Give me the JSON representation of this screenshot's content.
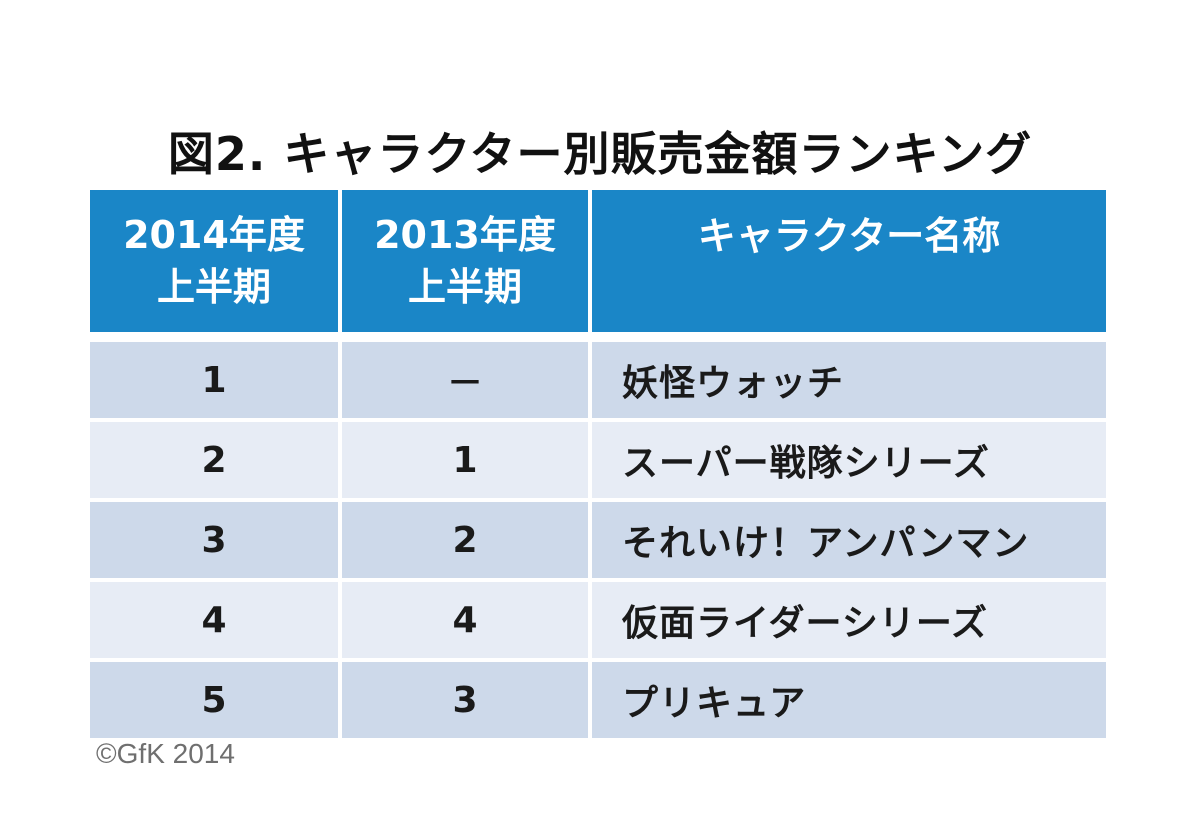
{
  "title": "図2. キャラクター別販売金額ランキング",
  "copyright": "©GfK 2014",
  "colors": {
    "header_bg": "#1a86c7",
    "row_dark": "#cdd9ea",
    "row_light": "#e7ecf5"
  },
  "chart_data": {
    "type": "table",
    "title": "図2. キャラクター別販売金額ランキング",
    "columns": [
      {
        "line1": "2014年度",
        "line2": "上半期"
      },
      {
        "line1": "2013年度",
        "line2": "上半期"
      },
      {
        "line1": "キャラクター名称",
        "line2": ""
      }
    ],
    "rows": [
      {
        "rank_2014": "1",
        "rank_2013": "－",
        "name": "妖怪ウォッチ"
      },
      {
        "rank_2014": "2",
        "rank_2013": "1",
        "name": "スーパー戦隊シリーズ"
      },
      {
        "rank_2014": "3",
        "rank_2013": "2",
        "name": "それいけ！アンパンマン"
      },
      {
        "rank_2014": "4",
        "rank_2013": "4",
        "name": "仮面ライダーシリーズ"
      },
      {
        "rank_2014": "5",
        "rank_2013": "3",
        "name": "プリキュア"
      }
    ]
  }
}
